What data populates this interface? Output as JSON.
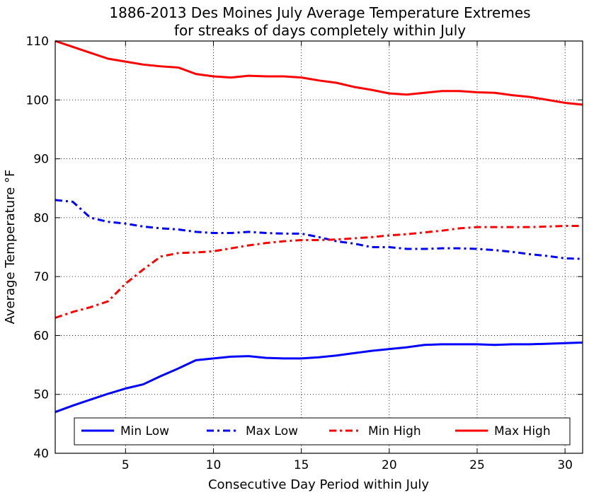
{
  "chart_data": {
    "type": "line",
    "title": "1886-2013 Des Moines July Average Temperature Extremes",
    "subtitle": "for streaks of days completely within July",
    "xlabel": "Consecutive Day Period within July",
    "ylabel": "Average Temperature °F",
    "xlim": [
      1,
      31
    ],
    "ylim": [
      40,
      110
    ],
    "xticks": [
      5,
      10,
      15,
      20,
      25,
      30
    ],
    "yticks": [
      40,
      50,
      60,
      70,
      80,
      90,
      100,
      110
    ],
    "grid": true,
    "legend_position": "bottom",
    "x": [
      1,
      2,
      3,
      4,
      5,
      6,
      7,
      8,
      9,
      10,
      11,
      12,
      13,
      14,
      15,
      16,
      17,
      18,
      19,
      20,
      21,
      22,
      23,
      24,
      25,
      26,
      27,
      28,
      29,
      30,
      31
    ],
    "series": [
      {
        "name": "Min Low",
        "color": "#0000ff",
        "style": "solid",
        "values": [
          47.0,
          48.1,
          49.1,
          50.1,
          51.0,
          51.7,
          53.1,
          54.4,
          55.8,
          56.1,
          56.4,
          56.5,
          56.2,
          56.1,
          56.1,
          56.3,
          56.6,
          57.0,
          57.4,
          57.7,
          58.0,
          58.4,
          58.5,
          58.5,
          58.5,
          58.4,
          58.5,
          58.5,
          58.6,
          58.7,
          58.8
        ]
      },
      {
        "name": "Max Low",
        "color": "#0000ff",
        "style": "dashdot",
        "values": [
          83.0,
          82.7,
          80.0,
          79.3,
          79.0,
          78.5,
          78.2,
          78.0,
          77.6,
          77.4,
          77.4,
          77.6,
          77.4,
          77.3,
          77.3,
          76.7,
          76.0,
          75.6,
          75.0,
          75.0,
          74.7,
          74.7,
          74.8,
          74.8,
          74.7,
          74.5,
          74.2,
          73.8,
          73.5,
          73.1,
          73.0
        ]
      },
      {
        "name": "Min High",
        "color": "#ff0000",
        "style": "dashdot",
        "values": [
          63.0,
          64.0,
          64.8,
          65.8,
          68.8,
          71.2,
          73.4,
          74.0,
          74.1,
          74.3,
          74.8,
          75.3,
          75.7,
          76.0,
          76.2,
          76.2,
          76.3,
          76.5,
          76.7,
          77.0,
          77.2,
          77.5,
          77.8,
          78.2,
          78.4,
          78.4,
          78.4,
          78.4,
          78.5,
          78.6,
          78.6
        ]
      },
      {
        "name": "Max High",
        "color": "#ff0000",
        "style": "solid",
        "values": [
          110.0,
          109.0,
          108.0,
          107.0,
          106.5,
          106.0,
          105.7,
          105.5,
          104.4,
          104.0,
          103.8,
          104.1,
          104.0,
          104.0,
          103.8,
          103.3,
          102.9,
          102.2,
          101.7,
          101.1,
          100.9,
          101.2,
          101.5,
          101.5,
          101.3,
          101.2,
          100.8,
          100.5,
          100.0,
          99.5,
          99.2
        ]
      }
    ]
  }
}
